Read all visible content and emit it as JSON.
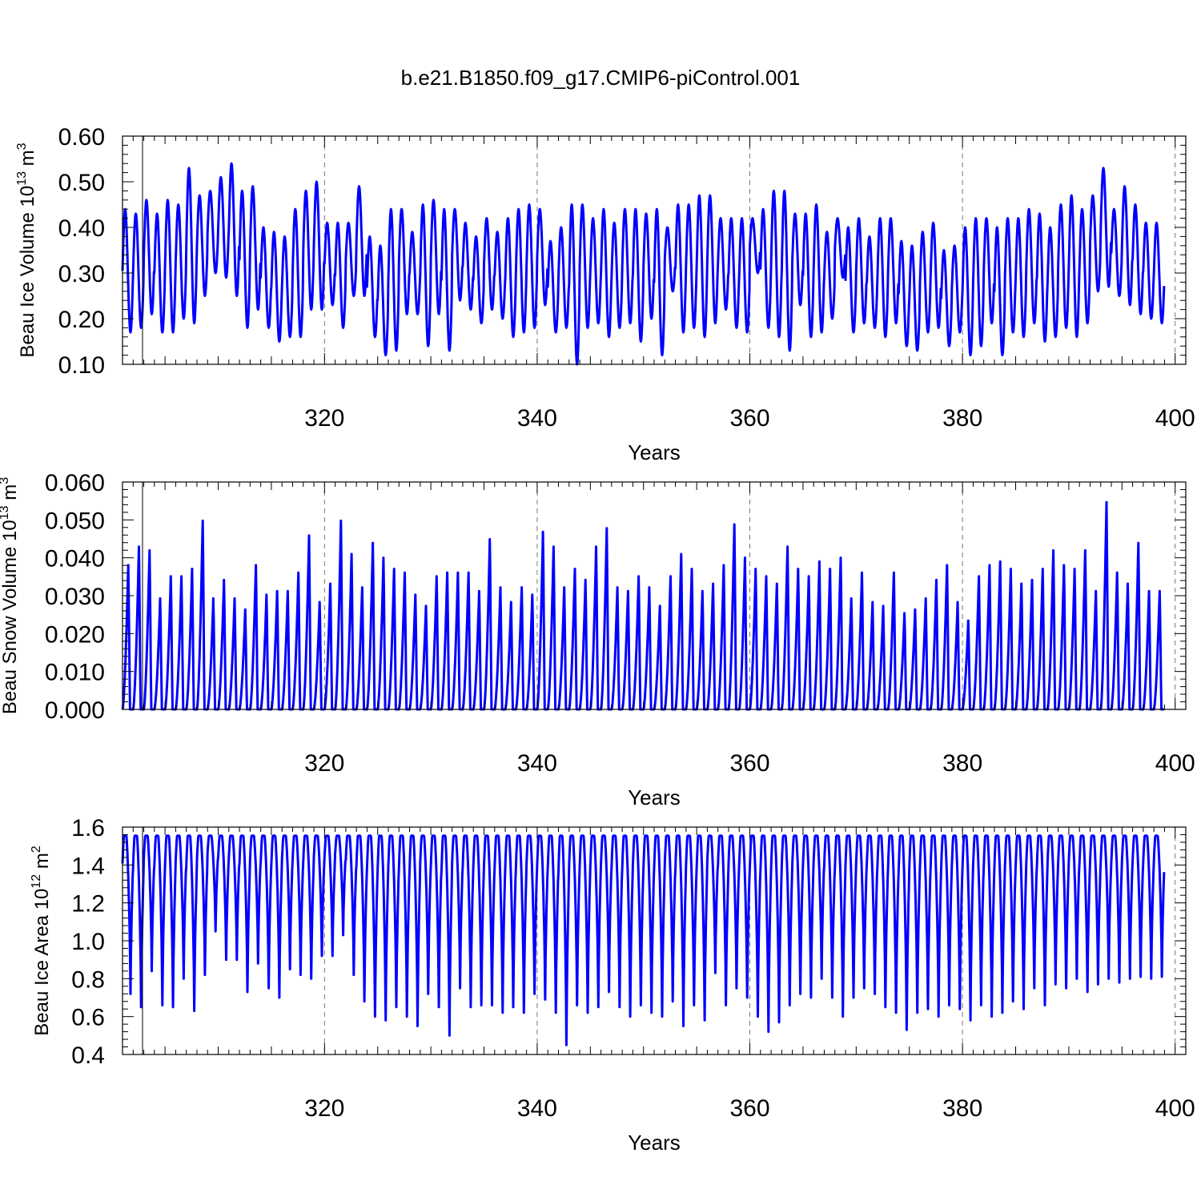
{
  "title": "b.e21.B1850.f09_g17.CMIP6-piControl.001",
  "colors": {
    "series": "#0000ff",
    "axis": "#000000",
    "grid": "#777777",
    "background": "#ffffff"
  },
  "chart_data": [
    {
      "type": "line",
      "title": "",
      "xlabel": "Years",
      "ylabel": "Beau Ice Volume 10",
      "ylabel_exp": "13",
      "ylabel_unit": "m",
      "ylabel_unit_exp": "3",
      "xlim": [
        301,
        401
      ],
      "ylim": [
        0.1,
        0.6
      ],
      "xticks": [
        320,
        340,
        360,
        380,
        400
      ],
      "xticklabels": [
        "320",
        "340",
        "360",
        "380",
        "400"
      ],
      "yticks": [
        0.1,
        0.2,
        0.3,
        0.4,
        0.5,
        0.6
      ],
      "yticklabels": [
        "0.10",
        "0.20",
        "0.30",
        "0.40",
        "0.50",
        "0.60"
      ],
      "grid": "vertical dashed at major x ticks",
      "series": [
        {
          "x_start": 301.0,
          "x_step": 1,
          "annual_max": [
            0.44,
            0.43,
            0.46,
            0.43,
            0.46,
            0.45,
            0.53,
            0.47,
            0.48,
            0.51,
            0.54,
            0.48,
            0.49,
            0.4,
            0.39,
            0.38,
            0.44,
            0.48,
            0.5,
            0.41,
            0.41,
            0.41,
            0.49,
            0.38,
            0.36,
            0.44,
            0.44,
            0.39,
            0.45,
            0.46,
            0.44,
            0.44,
            0.41,
            0.38,
            0.42,
            0.39,
            0.42,
            0.44,
            0.45,
            0.44,
            0.37,
            0.4,
            0.45,
            0.45,
            0.42,
            0.44,
            0.41,
            0.44,
            0.44,
            0.43,
            0.44,
            0.4,
            0.45,
            0.45,
            0.47,
            0.47,
            0.42,
            0.42,
            0.42,
            0.42,
            0.44,
            0.48,
            0.48,
            0.43,
            0.43,
            0.45,
            0.39,
            0.42,
            0.4,
            0.42,
            0.38,
            0.42,
            0.42,
            0.37,
            0.36,
            0.39,
            0.41,
            0.35,
            0.36,
            0.4,
            0.42,
            0.42,
            0.4,
            0.42,
            0.42,
            0.44,
            0.43,
            0.4,
            0.45,
            0.47,
            0.44,
            0.47,
            0.53,
            0.44,
            0.49,
            0.45,
            0.41,
            0.41
          ],
          "annual_min": [
            0.17,
            0.18,
            0.21,
            0.17,
            0.17,
            0.2,
            0.19,
            0.25,
            0.3,
            0.29,
            0.25,
            0.18,
            0.22,
            0.18,
            0.15,
            0.16,
            0.16,
            0.22,
            0.22,
            0.23,
            0.18,
            0.25,
            0.25,
            0.16,
            0.12,
            0.13,
            0.21,
            0.21,
            0.14,
            0.21,
            0.13,
            0.24,
            0.22,
            0.19,
            0.22,
            0.2,
            0.16,
            0.17,
            0.18,
            0.23,
            0.17,
            0.18,
            0.1,
            0.18,
            0.19,
            0.16,
            0.18,
            0.19,
            0.15,
            0.2,
            0.12,
            0.26,
            0.17,
            0.18,
            0.16,
            0.19,
            0.22,
            0.18,
            0.17,
            0.3,
            0.18,
            0.16,
            0.13,
            0.23,
            0.16,
            0.17,
            0.2,
            0.29,
            0.17,
            0.19,
            0.18,
            0.16,
            0.19,
            0.14,
            0.13,
            0.17,
            0.18,
            0.14,
            0.17,
            0.12,
            0.14,
            0.19,
            0.12,
            0.17,
            0.16,
            0.19,
            0.15,
            0.16,
            0.18,
            0.16,
            0.19,
            0.26,
            0.27,
            0.25,
            0.23,
            0.21,
            0.2,
            0.19
          ]
        }
      ]
    },
    {
      "type": "line",
      "title": "",
      "xlabel": "Years",
      "ylabel": "Beau Snow Volume 10",
      "ylabel_exp": "13",
      "ylabel_unit": "m",
      "ylabel_unit_exp": "3",
      "xlim": [
        301,
        401
      ],
      "ylim": [
        0.0,
        0.06
      ],
      "xticks": [
        320,
        340,
        360,
        380,
        400
      ],
      "xticklabels": [
        "320",
        "340",
        "360",
        "380",
        "400"
      ],
      "yticks": [
        0.0,
        0.01,
        0.02,
        0.03,
        0.04,
        0.05,
        0.06
      ],
      "yticklabels": [
        "0.000",
        "0.010",
        "0.020",
        "0.030",
        "0.040",
        "0.050",
        "0.060"
      ],
      "grid": "vertical dashed at major x ticks",
      "series": [
        {
          "x_start": 301.0,
          "x_step": 1,
          "annual_max": [
            0.039,
            0.044,
            0.043,
            0.03,
            0.036,
            0.036,
            0.038,
            0.051,
            0.03,
            0.035,
            0.03,
            0.027,
            0.039,
            0.031,
            0.032,
            0.032,
            0.037,
            0.047,
            0.029,
            0.034,
            0.051,
            0.042,
            0.033,
            0.045,
            0.041,
            0.038,
            0.037,
            0.031,
            0.028,
            0.036,
            0.037,
            0.037,
            0.037,
            0.032,
            0.046,
            0.033,
            0.029,
            0.033,
            0.031,
            0.048,
            0.044,
            0.033,
            0.038,
            0.035,
            0.044,
            0.049,
            0.033,
            0.032,
            0.036,
            0.033,
            0.028,
            0.036,
            0.042,
            0.038,
            0.032,
            0.034,
            0.039,
            0.05,
            0.041,
            0.038,
            0.036,
            0.034,
            0.044,
            0.038,
            0.036,
            0.04,
            0.038,
            0.041,
            0.03,
            0.037,
            0.029,
            0.028,
            0.037,
            0.026,
            0.027,
            0.03,
            0.035,
            0.039,
            0.029,
            0.024,
            0.036,
            0.039,
            0.04,
            0.038,
            0.034,
            0.035,
            0.038,
            0.043,
            0.039,
            0.038,
            0.043,
            0.032,
            0.056,
            0.037,
            0.034,
            0.045,
            0.032,
            0.032
          ]
        }
      ]
    },
    {
      "type": "line",
      "title": "",
      "xlabel": "Years",
      "ylabel": "Beau Ice Area 10",
      "ylabel_exp": "12",
      "ylabel_unit": "m",
      "ylabel_unit_exp": "2",
      "xlim": [
        301,
        401
      ],
      "ylim": [
        0.4,
        1.6
      ],
      "xticks": [
        320,
        340,
        360,
        380,
        400
      ],
      "xticklabels": [
        "320",
        "340",
        "360",
        "380",
        "400"
      ],
      "yticks": [
        0.4,
        0.6,
        0.8,
        1.0,
        1.2,
        1.4,
        1.6
      ],
      "yticklabels": [
        "0.4",
        "0.6",
        "0.8",
        "1.0",
        "1.2",
        "1.4",
        "1.6"
      ],
      "grid": "vertical dashed at major x ticks",
      "series": [
        {
          "x_start": 301.0,
          "x_step": 1,
          "annual_max": 1.555,
          "annual_min": [
            0.72,
            0.65,
            0.84,
            0.66,
            0.65,
            0.8,
            0.63,
            0.82,
            1.05,
            0.9,
            0.9,
            0.73,
            0.88,
            0.75,
            0.7,
            0.85,
            0.82,
            0.8,
            0.92,
            0.92,
            1.03,
            0.82,
            0.68,
            0.6,
            0.58,
            0.65,
            0.6,
            0.55,
            0.72,
            0.65,
            0.5,
            0.75,
            0.65,
            0.66,
            0.66,
            0.62,
            0.65,
            0.62,
            0.72,
            0.69,
            0.62,
            0.45,
            0.66,
            0.62,
            0.65,
            0.73,
            0.65,
            0.6,
            0.66,
            0.62,
            0.6,
            0.68,
            0.55,
            0.66,
            0.58,
            0.83,
            0.66,
            0.75,
            0.7,
            0.6,
            0.52,
            0.57,
            0.66,
            0.72,
            0.7,
            0.8,
            0.7,
            0.6,
            0.7,
            0.75,
            0.72,
            0.65,
            0.62,
            0.53,
            0.62,
            0.64,
            0.6,
            0.66,
            0.64,
            0.58,
            0.66,
            0.6,
            0.62,
            0.68,
            0.64,
            0.75,
            0.66,
            0.77,
            0.75,
            0.8,
            0.73,
            0.77,
            0.8,
            0.78,
            0.8,
            0.81,
            0.8,
            0.81
          ]
        }
      ]
    }
  ]
}
